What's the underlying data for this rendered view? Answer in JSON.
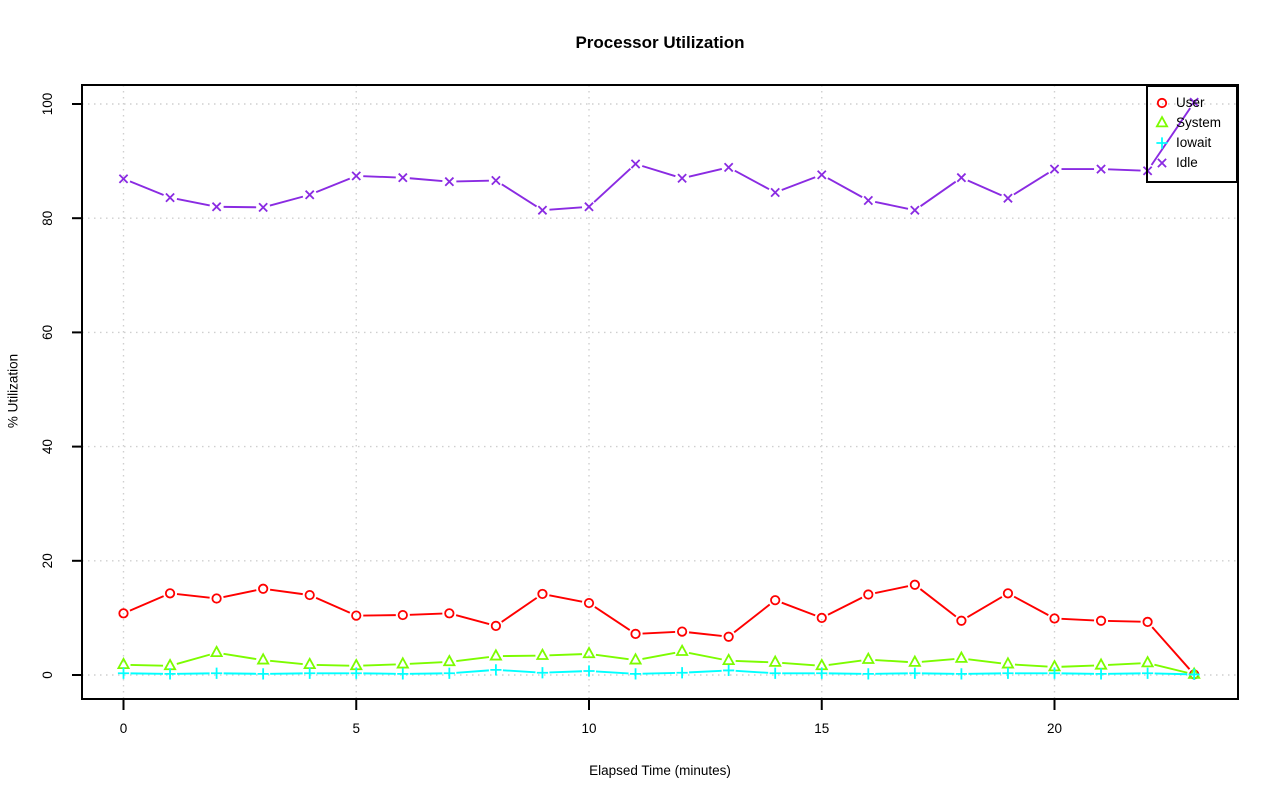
{
  "chart_data": {
    "type": "line",
    "title": "Processor Utilization",
    "xlabel": "Elapsed Time (minutes)",
    "ylabel": "% Utilization",
    "xticks": [
      0,
      5,
      10,
      15,
      20
    ],
    "yticks": [
      0,
      20,
      40,
      60,
      80,
      100
    ],
    "xlim": [
      0,
      24
    ],
    "ylim": [
      0,
      100
    ],
    "grid": true,
    "grid_style": "dotted",
    "legend_position": "top-right",
    "x": [
      0,
      1,
      2,
      3,
      4,
      5,
      6,
      7,
      8,
      9,
      10,
      11,
      12,
      13,
      14,
      15,
      16,
      17,
      18,
      19,
      20,
      21,
      22,
      23
    ],
    "series": [
      {
        "name": "User",
        "marker": "circle",
        "color": "#ff0000",
        "values": [
          10.8,
          14.3,
          13.4,
          15.1,
          14.0,
          10.4,
          10.5,
          10.8,
          8.6,
          14.2,
          12.6,
          7.2,
          7.6,
          6.7,
          13.1,
          10.0,
          14.1,
          15.8,
          9.5,
          14.3,
          9.9,
          9.5,
          9.3,
          0.1
        ]
      },
      {
        "name": "System",
        "marker": "triangle",
        "color": "#7cfc00",
        "values": [
          1.8,
          1.6,
          3.9,
          2.6,
          1.8,
          1.6,
          1.9,
          2.3,
          3.3,
          3.4,
          3.7,
          2.6,
          4.1,
          2.5,
          2.2,
          1.6,
          2.7,
          2.2,
          2.9,
          1.9,
          1.4,
          1.7,
          2.1,
          0.1
        ]
      },
      {
        "name": "Iowait",
        "marker": "plus",
        "color": "#00ffff",
        "values": [
          0.3,
          0.2,
          0.3,
          0.2,
          0.3,
          0.3,
          0.2,
          0.3,
          0.9,
          0.4,
          0.7,
          0.2,
          0.4,
          0.8,
          0.3,
          0.3,
          0.2,
          0.3,
          0.2,
          0.3,
          0.3,
          0.2,
          0.3,
          0.1
        ]
      },
      {
        "name": "Idle",
        "marker": "x",
        "color": "#8a2be2",
        "values": [
          86.9,
          83.6,
          82.0,
          81.9,
          84.1,
          87.4,
          87.1,
          86.4,
          86.6,
          81.4,
          82.0,
          89.5,
          87.0,
          88.9,
          84.5,
          87.6,
          83.1,
          81.4,
          87.1,
          83.5,
          88.6,
          88.6,
          88.3,
          100.3
        ]
      }
    ],
    "axis_color": "#000000",
    "gridline_color": "#cfcfcf"
  }
}
